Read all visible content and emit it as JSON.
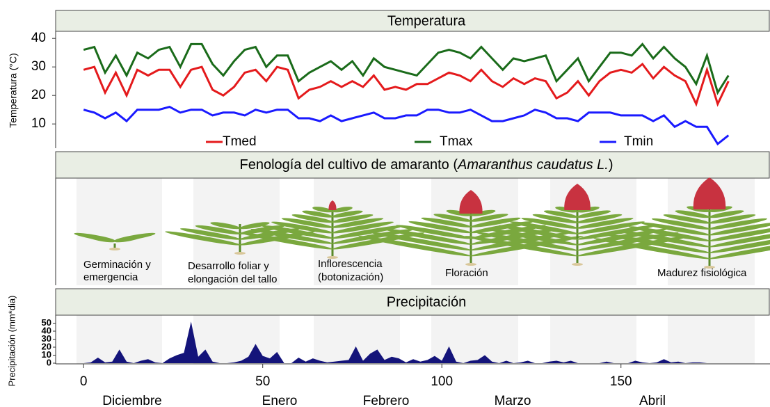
{
  "chart_data": [
    {
      "type": "line",
      "title": "Temperatura",
      "ylabel": "Temperatura (°C)",
      "x": [
        0,
        3,
        6,
        9,
        12,
        15,
        18,
        21,
        24,
        27,
        30,
        33,
        36,
        39,
        42,
        45,
        48,
        51,
        54,
        57,
        60,
        63,
        66,
        69,
        72,
        75,
        78,
        81,
        84,
        87,
        90,
        93,
        96,
        99,
        102,
        105,
        108,
        111,
        114,
        117,
        120,
        123,
        126,
        129,
        132,
        135,
        138,
        141,
        144,
        147,
        150,
        153,
        156,
        159,
        162,
        165,
        168,
        171,
        174,
        177,
        180
      ],
      "series": [
        {
          "name": "Tmed",
          "color": "#e41a1c",
          "values": [
            29,
            30,
            21,
            28,
            20,
            29,
            27,
            29,
            29,
            23,
            29,
            30,
            22,
            20,
            23,
            28,
            29,
            25,
            30,
            29,
            19,
            22,
            23,
            25,
            23,
            25,
            23,
            27,
            22,
            23,
            22,
            24,
            24,
            26,
            28,
            27,
            25,
            29,
            25,
            23,
            26,
            24,
            26,
            25,
            19,
            21,
            25,
            20,
            25,
            28,
            29,
            28,
            31,
            26,
            30,
            27,
            25,
            17,
            29,
            17,
            25
          ]
        },
        {
          "name": "Tmax",
          "color": "#1a6b1a",
          "values": [
            36,
            37,
            28,
            34,
            27,
            35,
            33,
            36,
            37,
            30,
            38,
            38,
            31,
            27,
            32,
            36,
            37,
            30,
            34,
            34,
            25,
            28,
            30,
            32,
            29,
            32,
            27,
            33,
            30,
            29,
            28,
            27,
            31,
            35,
            36,
            35,
            33,
            37,
            33,
            29,
            33,
            32,
            33,
            34,
            25,
            29,
            33,
            25,
            30,
            35,
            35,
            34,
            38,
            33,
            37,
            33,
            30,
            24,
            34,
            21,
            27
          ]
        },
        {
          "name": "Tmin",
          "color": "#1a1aff",
          "values": [
            15,
            14,
            12,
            14,
            11,
            15,
            15,
            15,
            16,
            14,
            15,
            15,
            13,
            14,
            14,
            13,
            15,
            14,
            15,
            15,
            12,
            12,
            11,
            13,
            11,
            12,
            13,
            14,
            12,
            12,
            13,
            13,
            15,
            15,
            14,
            14,
            15,
            13,
            11,
            11,
            12,
            13,
            15,
            14,
            12,
            12,
            11,
            14,
            14,
            14,
            13,
            13,
            13,
            11,
            13,
            9,
            11,
            9,
            9,
            3,
            6
          ]
        }
      ],
      "xlim": [
        -7.8,
        191.6
      ],
      "ylim": [
        1.5,
        42
      ],
      "yticks": [
        10,
        20,
        30,
        40
      ]
    },
    {
      "type": "area",
      "title": "Precipitación",
      "ylabel": "Precipitación (mm*dia)",
      "color": "#14147a",
      "x": [
        0,
        2,
        4,
        6,
        8,
        10,
        12,
        14,
        16,
        18,
        20,
        22,
        24,
        26,
        28,
        30,
        32,
        34,
        36,
        38,
        40,
        42,
        44,
        46,
        48,
        50,
        52,
        54,
        56,
        58,
        60,
        62,
        64,
        66,
        68,
        70,
        72,
        74,
        76,
        78,
        80,
        82,
        84,
        86,
        88,
        90,
        92,
        94,
        96,
        98,
        100,
        102,
        104,
        106,
        108,
        110,
        112,
        114,
        116,
        118,
        120,
        122,
        124,
        126,
        128,
        130,
        132,
        134,
        136,
        138,
        140,
        142,
        144,
        146,
        148,
        150,
        152,
        154,
        156,
        158,
        160,
        162,
        164,
        166,
        168,
        170,
        172,
        174,
        176,
        178,
        180
      ],
      "values": [
        0,
        1,
        7,
        1,
        2,
        17,
        2,
        0,
        3,
        5,
        1,
        0,
        6,
        10,
        13,
        52,
        8,
        17,
        2,
        0,
        0,
        1,
        3,
        8,
        24,
        9,
        6,
        14,
        0,
        0,
        7,
        2,
        6,
        3,
        1,
        2,
        3,
        4,
        21,
        3,
        12,
        17,
        4,
        8,
        6,
        1,
        5,
        2,
        4,
        9,
        3,
        21,
        2,
        0,
        3,
        4,
        10,
        2,
        0,
        3,
        0,
        1,
        3,
        0,
        0,
        2,
        3,
        1,
        3,
        0,
        0,
        0,
        0,
        2,
        0,
        0,
        0,
        3,
        1,
        0,
        1,
        5,
        1,
        2,
        0,
        1,
        1,
        0,
        0,
        0,
        0
      ],
      "xlim": [
        -7.8,
        191.6
      ],
      "ylim": [
        0,
        60
      ],
      "yticks": [
        0,
        10,
        20,
        30,
        40,
        50
      ],
      "xticks": [
        0,
        50,
        100,
        150
      ],
      "month_labels": [
        "Diciembre",
        "Enero",
        "Febrero",
        "Marzo",
        "Abril"
      ]
    }
  ],
  "phenology": {
    "title": [
      "Fenología del cultivo de amaranto (",
      "Amaranthus caudatus L.",
      ")"
    ],
    "stages": [
      [
        "Germinación y",
        "emergencia"
      ],
      [
        "Desarrollo foliar y",
        "elongación del tallo"
      ],
      [
        "Inflorescencia",
        "(botonización)"
      ],
      [
        "Floración"
      ],
      [
        "Madurez fisiológica"
      ]
    ]
  }
}
